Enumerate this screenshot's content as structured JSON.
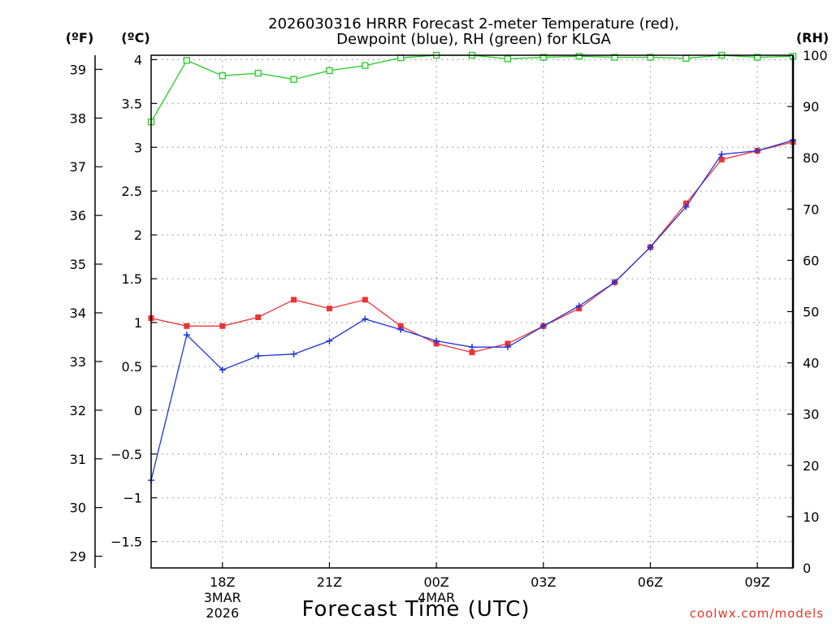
{
  "chart_data": {
    "type": "line",
    "title_line1": "2026030316 HRRR Forecast 2-meter Temperature (red),",
    "title_line2": "Dewpoint (blue), RH (green) for KLGA",
    "xlabel": "Forecast Time (UTC)",
    "credit": "coolwx.com/models",
    "units": {
      "fahrenheit": "(ºF)",
      "celsius": "(ºC)",
      "rh": "(RH)"
    },
    "x_hours": [
      16,
      17,
      18,
      19,
      20,
      21,
      22,
      23,
      24,
      25,
      26,
      27,
      28,
      29,
      30,
      31,
      32,
      33,
      34
    ],
    "xlim": [
      16,
      34
    ],
    "x_ticks": [
      {
        "hour": 18,
        "line1": "18Z",
        "line2": "3MAR",
        "line3": "2026"
      },
      {
        "hour": 21,
        "line1": "21Z"
      },
      {
        "hour": 24,
        "line1": "00Z",
        "line2": "4MAR"
      },
      {
        "hour": 27,
        "line1": "03Z"
      },
      {
        "hour": 30,
        "line1": "06Z"
      },
      {
        "hour": 33,
        "line1": "09Z"
      }
    ],
    "ylim_celsius": [
      -1.8,
      4.05
    ],
    "y_ticks_celsius": [
      "4",
      "3.5",
      "3",
      "2.5",
      "2",
      "1.5",
      "1",
      "0.5",
      "0",
      "−0.5",
      "−1",
      "−1.5"
    ],
    "y_tick_values_celsius": [
      4,
      3.5,
      3,
      2.5,
      2,
      1.5,
      1,
      0.5,
      0,
      -0.5,
      -1,
      -1.5
    ],
    "y_ticks_fahrenheit": [
      "39",
      "38",
      "37",
      "36",
      "35",
      "34",
      "33",
      "32",
      "31",
      "30",
      "29"
    ],
    "y_tick_values_fahrenheit": [
      39,
      38,
      37,
      36,
      35,
      34,
      33,
      32,
      31,
      30,
      29
    ],
    "ylim_rh": [
      0,
      100
    ],
    "y_ticks_rh": [
      "100",
      "90",
      "80",
      "70",
      "60",
      "50",
      "40",
      "30",
      "20",
      "10",
      "0"
    ],
    "y_tick_values_rh": [
      100,
      90,
      80,
      70,
      60,
      50,
      40,
      30,
      20,
      10,
      0
    ],
    "series": [
      {
        "name": "Temperature",
        "axis": "celsius",
        "color": "#ee3333",
        "marker": "filled-square",
        "values": [
          1.05,
          0.96,
          0.96,
          1.06,
          1.26,
          1.16,
          1.26,
          0.96,
          0.76,
          0.66,
          0.76,
          0.96,
          1.16,
          1.46,
          1.86,
          2.36,
          2.86,
          2.96,
          3.06
        ]
      },
      {
        "name": "Dewpoint",
        "axis": "celsius",
        "color": "#2233dd",
        "marker": "plus",
        "values": [
          -0.8,
          0.86,
          0.46,
          0.62,
          0.64,
          0.79,
          1.04,
          0.92,
          0.79,
          0.72,
          0.72,
          0.96,
          1.19,
          1.46,
          1.86,
          2.32,
          2.92,
          2.96,
          3.08
        ]
      },
      {
        "name": "RH",
        "axis": "rh",
        "color": "#22cc22",
        "marker": "open-square",
        "values": [
          87,
          99,
          96,
          96.5,
          95.3,
          97,
          98,
          99.5,
          100,
          100,
          99.3,
          99.6,
          99.8,
          99.6,
          99.6,
          99.4,
          100,
          99.6,
          99.8
        ]
      }
    ],
    "grid": true
  }
}
